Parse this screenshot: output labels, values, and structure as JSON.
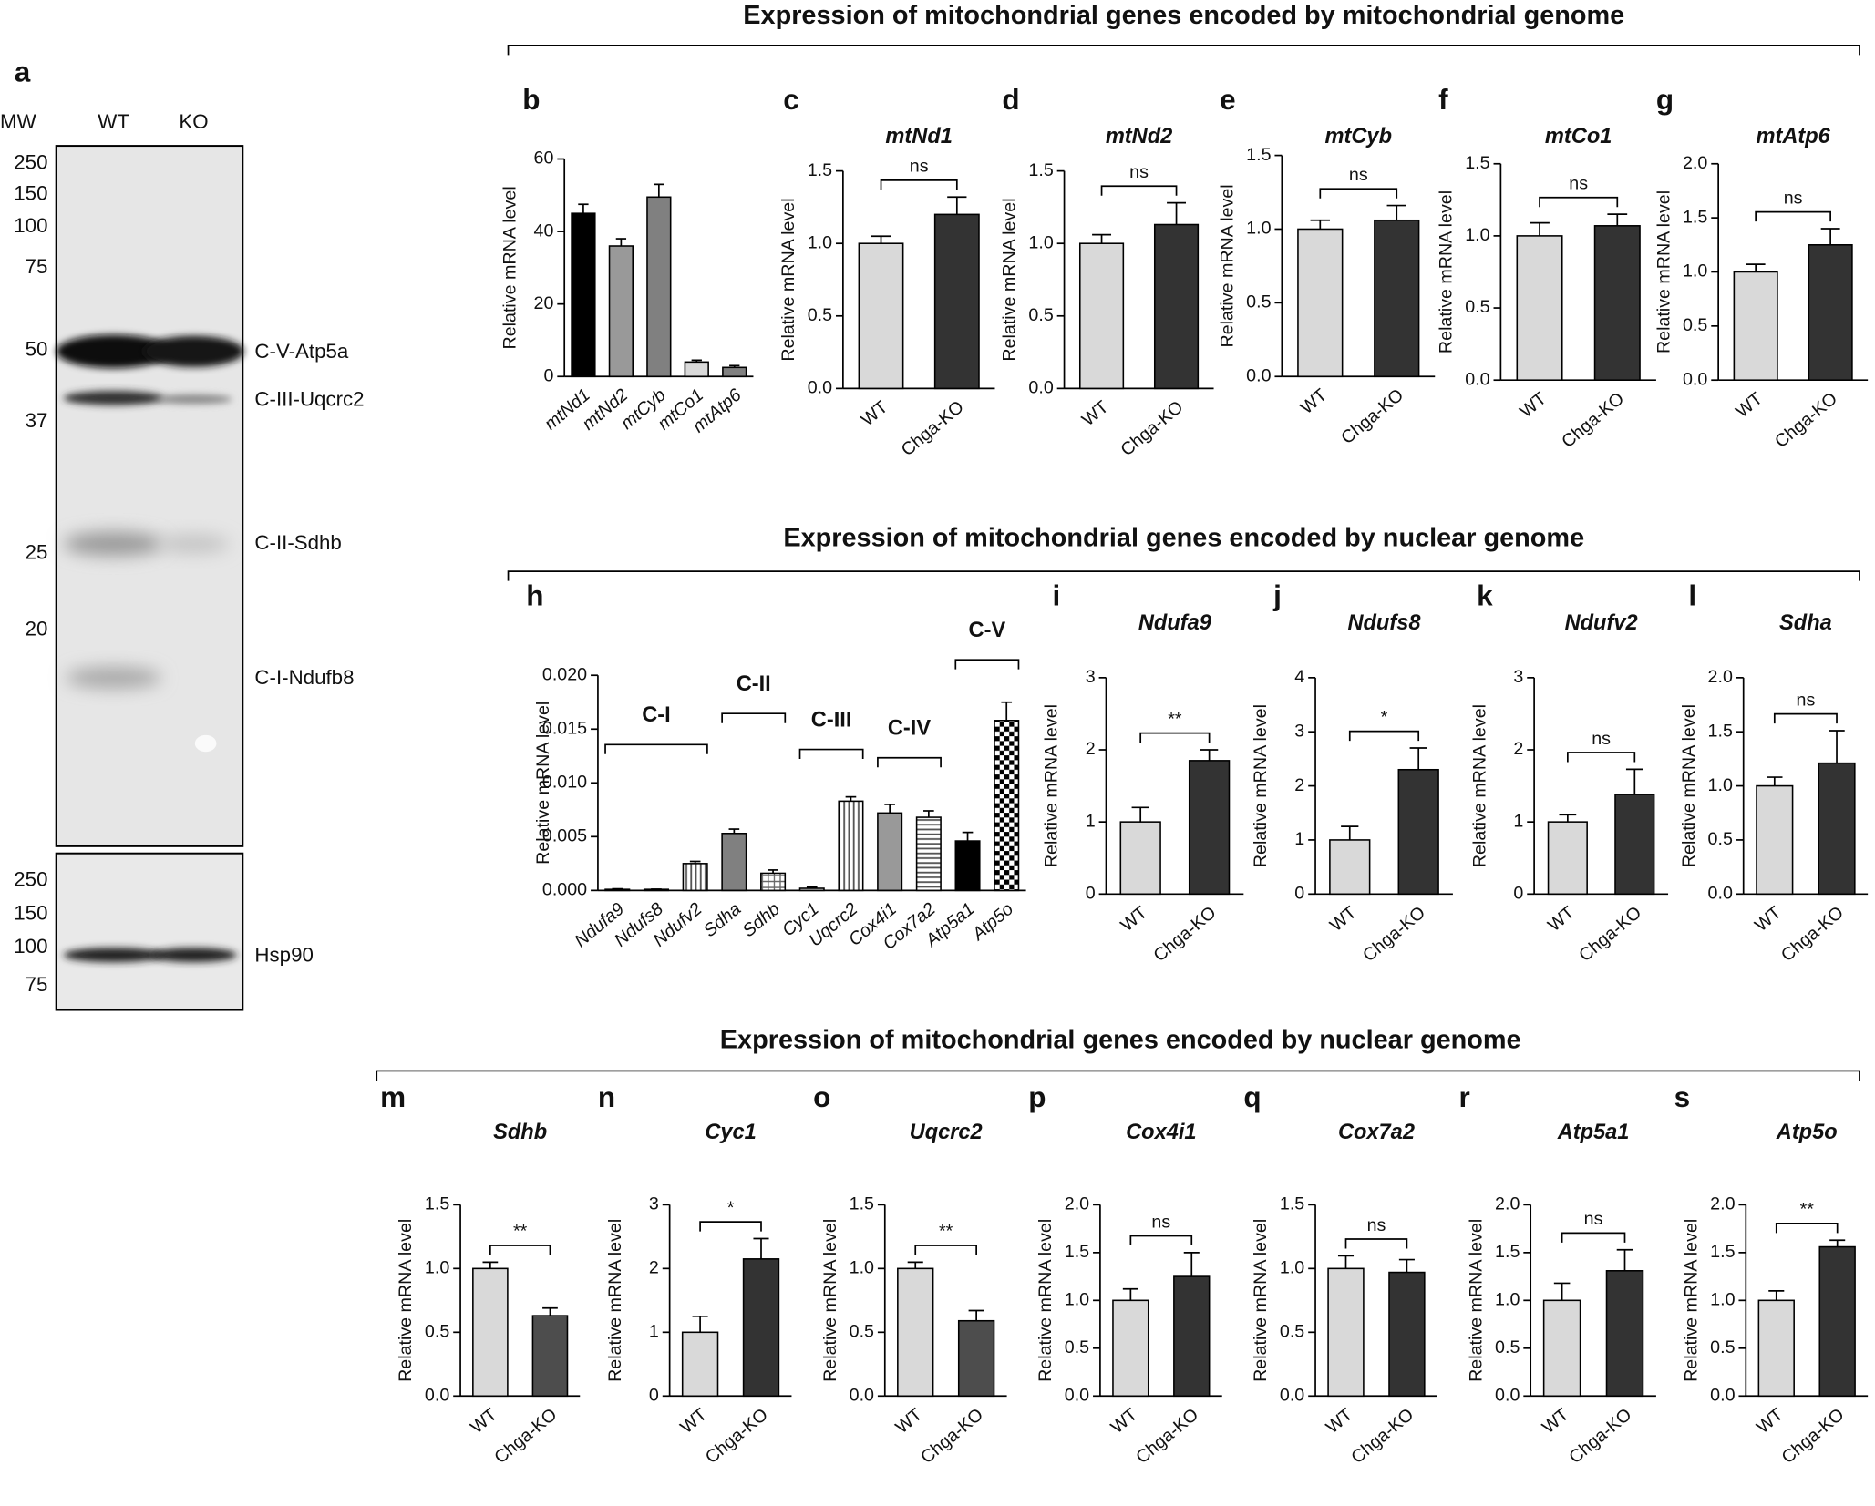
{
  "sections": [
    {
      "title": "Expression of mitochondrial genes encoded by mitochondrial genome"
    },
    {
      "title": "Expression of mitochondrial genes encoded by nuclear genome"
    },
    {
      "title": "Expression of mitochondrial genes encoded by nuclear genome"
    }
  ],
  "blot": {
    "panel": "a",
    "headers": [
      "MW",
      "WT",
      "KO"
    ],
    "upper_markers": [
      250,
      150,
      100,
      75,
      50,
      37,
      25,
      20
    ],
    "lower_markers": [
      250,
      150,
      100,
      75
    ],
    "bands": [
      "C-V-Atp5a",
      "C-III-Uqcrc2",
      "C-II-Sdhb",
      "C-I-Ndufb8",
      "Hsp90"
    ]
  },
  "chart_data": [
    {
      "type": "bar",
      "panel": "b",
      "ylabel": "Relative mRNA level",
      "italic_categories": true,
      "categories": [
        "mtNd1",
        "mtNd2",
        "mtCyb",
        "mtCo1",
        "mtAtp6"
      ],
      "values": [
        45,
        36,
        49.5,
        4,
        2.5
      ],
      "errors": [
        2.5,
        2,
        3.5,
        0.5,
        0.5
      ],
      "colors": [
        "#000000",
        "#999999",
        "#808080",
        "#d9d9d9",
        "#808080"
      ],
      "ylim": [
        0,
        60
      ],
      "yticks": [
        0,
        20,
        40,
        60
      ]
    },
    {
      "type": "bar",
      "panel": "c",
      "title": "mtNd1",
      "ylabel": "Relative mRNA level",
      "categories": [
        "WT",
        "Chga-KO"
      ],
      "values": [
        1.0,
        1.2
      ],
      "errors": [
        0.05,
        0.12
      ],
      "colors": [
        "#d9d9d9",
        "#333333"
      ],
      "significance": "ns",
      "ylim": [
        0,
        1.5
      ],
      "yticks": [
        {
          "value": 0,
          "label": "0.0"
        },
        {
          "value": 0.5,
          "label": "0.5"
        },
        {
          "value": 1,
          "label": "1.0"
        },
        {
          "value": 1.5,
          "label": "1.5"
        }
      ]
    },
    {
      "type": "bar",
      "panel": "d",
      "title": "mtNd2",
      "ylabel": "Relative mRNA level",
      "categories": [
        "WT",
        "Chga-KO"
      ],
      "values": [
        1.0,
        1.13
      ],
      "errors": [
        0.06,
        0.15
      ],
      "colors": [
        "#d9d9d9",
        "#333333"
      ],
      "significance": "ns",
      "ylim": [
        0,
        1.5
      ],
      "yticks": [
        {
          "value": 0,
          "label": "0.0"
        },
        {
          "value": 0.5,
          "label": "0.5"
        },
        {
          "value": 1,
          "label": "1.0"
        },
        {
          "value": 1.5,
          "label": "1.5"
        }
      ]
    },
    {
      "type": "bar",
      "panel": "e",
      "title": "mtCyb",
      "ylabel": "Relative mRNA level",
      "categories": [
        "WT",
        "Chga-KO"
      ],
      "values": [
        1.0,
        1.06
      ],
      "errors": [
        0.06,
        0.1
      ],
      "colors": [
        "#d9d9d9",
        "#333333"
      ],
      "significance": "ns",
      "ylim": [
        0,
        1.5
      ],
      "yticks": [
        {
          "value": 0,
          "label": "0.0"
        },
        {
          "value": 0.5,
          "label": "0.5"
        },
        {
          "value": 1,
          "label": "1.0"
        },
        {
          "value": 1.5,
          "label": "1.5"
        }
      ]
    },
    {
      "type": "bar",
      "panel": "f",
      "title": "mtCo1",
      "ylabel": "Relative mRNA level",
      "categories": [
        "WT",
        "Chga-KO"
      ],
      "values": [
        1.0,
        1.07
      ],
      "errors": [
        0.09,
        0.08
      ],
      "colors": [
        "#d9d9d9",
        "#333333"
      ],
      "significance": "ns",
      "ylim": [
        0,
        1.5
      ],
      "yticks": [
        {
          "value": 0,
          "label": "0.0"
        },
        {
          "value": 0.5,
          "label": "0.5"
        },
        {
          "value": 1,
          "label": "1.0"
        },
        {
          "value": 1.5,
          "label": "1.5"
        }
      ]
    },
    {
      "type": "bar",
      "panel": "g",
      "title": "mtAtp6",
      "ylabel": "Relative mRNA level",
      "categories": [
        "WT",
        "Chga-KO"
      ],
      "values": [
        1.0,
        1.25
      ],
      "errors": [
        0.07,
        0.15
      ],
      "colors": [
        "#d9d9d9",
        "#333333"
      ],
      "significance": "ns",
      "ylim": [
        0,
        2
      ],
      "yticks": [
        {
          "value": 0,
          "label": "0.0"
        },
        {
          "value": 0.5,
          "label": "0.5"
        },
        {
          "value": 1,
          "label": "1.0"
        },
        {
          "value": 1.5,
          "label": "1.5"
        },
        {
          "value": 2,
          "label": "2.0"
        }
      ]
    },
    {
      "type": "bar",
      "panel": "h",
      "ylabel": "Relative mRNA level",
      "italic_categories": true,
      "categories": [
        "Ndufa9",
        "Ndufs8",
        "Ndufv2",
        "Sdha",
        "Sdhb",
        "Cyc1",
        "Uqcrc2",
        "Cox4i1",
        "Cox7a2",
        "Atp5a1",
        "Atp5o"
      ],
      "values": [
        0.0001,
        0.0001,
        0.0025,
        0.0053,
        0.0016,
        0.0002,
        0.0083,
        0.0072,
        0.0068,
        0.0046,
        0.0158
      ],
      "errors": [
        5e-05,
        2e-05,
        0.0002,
        0.0004,
        0.0003,
        0.0001,
        0.0004,
        0.0008,
        0.0006,
        0.0008,
        0.0017
      ],
      "colors": [
        "#d9d9d9",
        "#d9d9d9",
        "#d9d9d9",
        "#808080",
        "#ffffff",
        "#d9d9d9",
        "#ffffff",
        "#999999",
        "#ffffff",
        "#000000",
        "#ffffff"
      ],
      "patterns": [
        "solid",
        "solid",
        "vertical",
        "solid",
        "grid",
        "solid",
        "vertical",
        "solid",
        "horizontal",
        "solid",
        "checker"
      ],
      "groups": [
        {
          "label": "C-I"
        },
        {
          "label": "C-II"
        },
        {
          "label": "C-III"
        },
        {
          "label": "C-IV"
        },
        {
          "label": "C-V"
        }
      ],
      "ylim": [
        0,
        0.02
      ],
      "yticks": [
        {
          "value": 0,
          "label": "0.000"
        },
        {
          "value": 0.005,
          "label": "0.005"
        },
        {
          "value": 0.01,
          "label": "0.010"
        },
        {
          "value": 0.015,
          "label": "0.015"
        },
        {
          "value": 0.02,
          "label": "0.020"
        }
      ]
    },
    {
      "type": "bar",
      "panel": "i",
      "title": "Ndufa9",
      "ylabel": "Relative mRNA level",
      "categories": [
        "WT",
        "Chga-KO"
      ],
      "values": [
        1.0,
        1.85
      ],
      "errors": [
        0.2,
        0.15
      ],
      "colors": [
        "#d9d9d9",
        "#333333"
      ],
      "significance": "**",
      "ylim": [
        0,
        3
      ],
      "yticks": [
        0,
        1,
        2,
        3
      ]
    },
    {
      "type": "bar",
      "panel": "j",
      "title": "Ndufs8",
      "ylabel": "Relative mRNA level",
      "categories": [
        "WT",
        "Chga-KO"
      ],
      "values": [
        1.0,
        2.3
      ],
      "errors": [
        0.25,
        0.4
      ],
      "colors": [
        "#d9d9d9",
        "#333333"
      ],
      "significance": "*",
      "ylim": [
        0,
        4
      ],
      "yticks": [
        0,
        1,
        2,
        3,
        4
      ]
    },
    {
      "type": "bar",
      "panel": "k",
      "title": "Ndufv2",
      "ylabel": "Relative mRNA level",
      "categories": [
        "WT",
        "Chga-KO"
      ],
      "values": [
        1.0,
        1.38
      ],
      "errors": [
        0.1,
        0.35
      ],
      "colors": [
        "#d9d9d9",
        "#333333"
      ],
      "significance": "ns",
      "ylim": [
        0,
        3
      ],
      "yticks": [
        0,
        1,
        2,
        3
      ]
    },
    {
      "type": "bar",
      "panel": "l",
      "title": "Sdha",
      "ylabel": "Relative mRNA level",
      "categories": [
        "WT",
        "Chga-KO"
      ],
      "values": [
        1.0,
        1.21
      ],
      "errors": [
        0.08,
        0.3
      ],
      "colors": [
        "#d9d9d9",
        "#333333"
      ],
      "significance": "ns",
      "ylim": [
        0,
        2
      ],
      "yticks": [
        {
          "value": 0,
          "label": "0.0"
        },
        {
          "value": 0.5,
          "label": "0.5"
        },
        {
          "value": 1,
          "label": "1.0"
        },
        {
          "value": 1.5,
          "label": "1.5"
        },
        {
          "value": 2,
          "label": "2.0"
        }
      ]
    },
    {
      "type": "bar",
      "panel": "m",
      "title": "Sdhb",
      "ylabel": "Relative mRNA level",
      "categories": [
        "WT",
        "Chga-KO"
      ],
      "values": [
        1.0,
        0.63
      ],
      "errors": [
        0.05,
        0.06
      ],
      "colors": [
        "#d9d9d9",
        "#4d4d4d"
      ],
      "significance": "**",
      "ylim": [
        0,
        1.5
      ],
      "yticks": [
        {
          "value": 0,
          "label": "0.0"
        },
        {
          "value": 0.5,
          "label": "0.5"
        },
        {
          "value": 1,
          "label": "1.0"
        },
        {
          "value": 1.5,
          "label": "1.5"
        }
      ]
    },
    {
      "type": "bar",
      "panel": "n",
      "title": "Cyc1",
      "ylabel": "Relative mRNA level",
      "categories": [
        "WT",
        "Chga-KO"
      ],
      "values": [
        1.0,
        2.15
      ],
      "errors": [
        0.25,
        0.32
      ],
      "colors": [
        "#d9d9d9",
        "#333333"
      ],
      "significance": "*",
      "ylim": [
        0,
        3
      ],
      "yticks": [
        0,
        1,
        2,
        3
      ]
    },
    {
      "type": "bar",
      "panel": "o",
      "title": "Uqcrc2",
      "ylabel": "Relative mRNA level",
      "categories": [
        "WT",
        "Chga-KO"
      ],
      "values": [
        1.0,
        0.59
      ],
      "errors": [
        0.05,
        0.08
      ],
      "colors": [
        "#d9d9d9",
        "#4d4d4d"
      ],
      "significance": "**",
      "ylim": [
        0,
        1.5
      ],
      "yticks": [
        {
          "value": 0,
          "label": "0.0"
        },
        {
          "value": 0.5,
          "label": "0.5"
        },
        {
          "value": 1,
          "label": "1.0"
        },
        {
          "value": 1.5,
          "label": "1.5"
        }
      ]
    },
    {
      "type": "bar",
      "panel": "p",
      "title": "Cox4i1",
      "ylabel": "Relative mRNA level",
      "categories": [
        "WT",
        "Chga-KO"
      ],
      "values": [
        1.0,
        1.25
      ],
      "errors": [
        0.12,
        0.25
      ],
      "colors": [
        "#d9d9d9",
        "#333333"
      ],
      "significance": "ns",
      "ylim": [
        0,
        2
      ],
      "yticks": [
        {
          "value": 0,
          "label": "0.0"
        },
        {
          "value": 0.5,
          "label": "0.5"
        },
        {
          "value": 1,
          "label": "1.0"
        },
        {
          "value": 1.5,
          "label": "1.5"
        },
        {
          "value": 2,
          "label": "2.0"
        }
      ]
    },
    {
      "type": "bar",
      "panel": "q",
      "title": "Cox7a2",
      "ylabel": "Relative mRNA level",
      "categories": [
        "WT",
        "Chga-KO"
      ],
      "values": [
        1.0,
        0.97
      ],
      "errors": [
        0.1,
        0.1
      ],
      "colors": [
        "#d9d9d9",
        "#333333"
      ],
      "significance": "ns",
      "ylim": [
        0,
        1.5
      ],
      "yticks": [
        {
          "value": 0,
          "label": "0.0"
        },
        {
          "value": 0.5,
          "label": "0.5"
        },
        {
          "value": 1,
          "label": "1.0"
        },
        {
          "value": 1.5,
          "label": "1.5"
        }
      ]
    },
    {
      "type": "bar",
      "panel": "r",
      "title": "Atp5a1",
      "ylabel": "Relative mRNA level",
      "categories": [
        "WT",
        "Chga-KO"
      ],
      "values": [
        1.0,
        1.31
      ],
      "errors": [
        0.18,
        0.22
      ],
      "colors": [
        "#d9d9d9",
        "#333333"
      ],
      "significance": "ns",
      "ylim": [
        0,
        2
      ],
      "yticks": [
        {
          "value": 0,
          "label": "0.0"
        },
        {
          "value": 0.5,
          "label": "0.5"
        },
        {
          "value": 1,
          "label": "1.0"
        },
        {
          "value": 1.5,
          "label": "1.5"
        },
        {
          "value": 2,
          "label": "2.0"
        }
      ]
    },
    {
      "type": "bar",
      "panel": "s",
      "title": "Atp5o",
      "ylabel": "Relative mRNA level",
      "categories": [
        "WT",
        "Chga-KO"
      ],
      "values": [
        1.0,
        1.56
      ],
      "errors": [
        0.1,
        0.07
      ],
      "colors": [
        "#d9d9d9",
        "#333333"
      ],
      "significance": "**",
      "ylim": [
        0,
        2
      ],
      "yticks": [
        {
          "value": 0,
          "label": "0.0"
        },
        {
          "value": 0.5,
          "label": "0.5"
        },
        {
          "value": 1,
          "label": "1.0"
        },
        {
          "value": 1.5,
          "label": "1.5"
        },
        {
          "value": 2,
          "label": "2.0"
        }
      ]
    }
  ]
}
